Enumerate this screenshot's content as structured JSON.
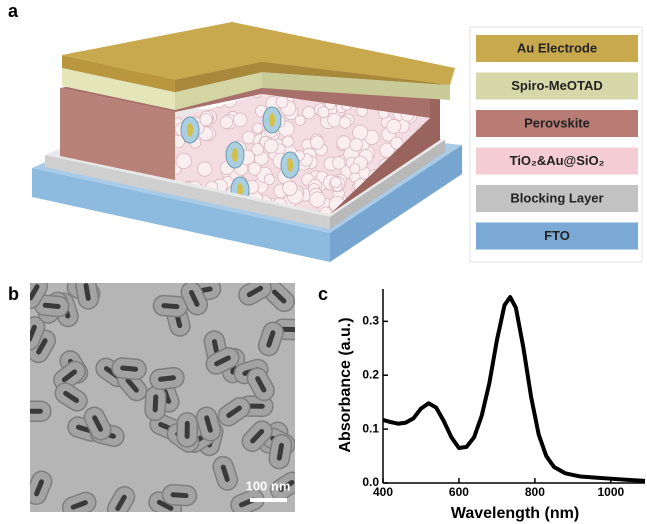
{
  "panel_labels": [
    "a",
    "b",
    "c"
  ],
  "legend": [
    {
      "label": "Au Electrode",
      "color": "#c9a94e"
    },
    {
      "label": "Spiro-MeOTAD",
      "color": "#d7d8a9"
    },
    {
      "label": "Perovskite",
      "color": "#b87c74"
    },
    {
      "label": "TiO₂&Au@SiO₂",
      "color": "#f4ccd4"
    },
    {
      "label": "Blocking Layer",
      "color": "#c2c2c2"
    },
    {
      "label": "FTO",
      "color": "#79a9d4"
    }
  ],
  "scale_bar": "100 nm",
  "chart_data": {
    "type": "line",
    "xlabel": "Wavelength (nm)",
    "ylabel": "Absorbance (a.u.)",
    "x": [
      400,
      420,
      440,
      460,
      480,
      500,
      520,
      540,
      560,
      580,
      600,
      620,
      640,
      660,
      680,
      700,
      720,
      735,
      750,
      770,
      790,
      810,
      830,
      850,
      880,
      920,
      960,
      1000,
      1040,
      1090
    ],
    "values": [
      0.117,
      0.113,
      0.11,
      0.112,
      0.12,
      0.138,
      0.148,
      0.14,
      0.115,
      0.085,
      0.065,
      0.067,
      0.085,
      0.125,
      0.185,
      0.265,
      0.33,
      0.345,
      0.325,
      0.25,
      0.16,
      0.09,
      0.05,
      0.03,
      0.018,
      0.012,
      0.01,
      0.008,
      0.006,
      0.004
    ],
    "color": "#000000",
    "xlim": [
      400,
      1090
    ],
    "ylim": [
      0,
      0.36
    ],
    "xticks": [
      400,
      600,
      800,
      1000
    ],
    "yticks": [
      {
        "value": 0,
        "label": "0.0"
      },
      0.1,
      0.2,
      0.3
    ]
  }
}
